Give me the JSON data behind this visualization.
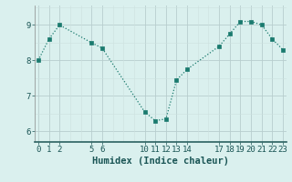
{
  "x": [
    0,
    1,
    2,
    5,
    6,
    10,
    11,
    12,
    13,
    14,
    17,
    18,
    19,
    20,
    21,
    22,
    23
  ],
  "y": [
    8.0,
    8.6,
    9.0,
    8.5,
    8.35,
    6.55,
    6.3,
    6.35,
    7.45,
    7.75,
    8.4,
    8.75,
    9.1,
    9.1,
    9.0,
    8.6,
    8.3
  ],
  "line_color": "#1a7a6e",
  "marker_color": "#1a7a6e",
  "bg_color": "#daf0ee",
  "grid_color_major": "#b8cece",
  "grid_color_minor": "#cde0de",
  "xlabel": "Humidex (Indice chaleur)",
  "xlabel_color": "#1a5555",
  "xticks": [
    0,
    1,
    2,
    5,
    6,
    10,
    11,
    12,
    13,
    14,
    17,
    18,
    19,
    20,
    21,
    22,
    23
  ],
  "yticks": [
    6,
    7,
    8,
    9
  ],
  "ylim": [
    5.7,
    9.55
  ],
  "xlim": [
    -0.3,
    23.3
  ],
  "xlabel_fontsize": 7.5,
  "tick_fontsize": 6.5
}
